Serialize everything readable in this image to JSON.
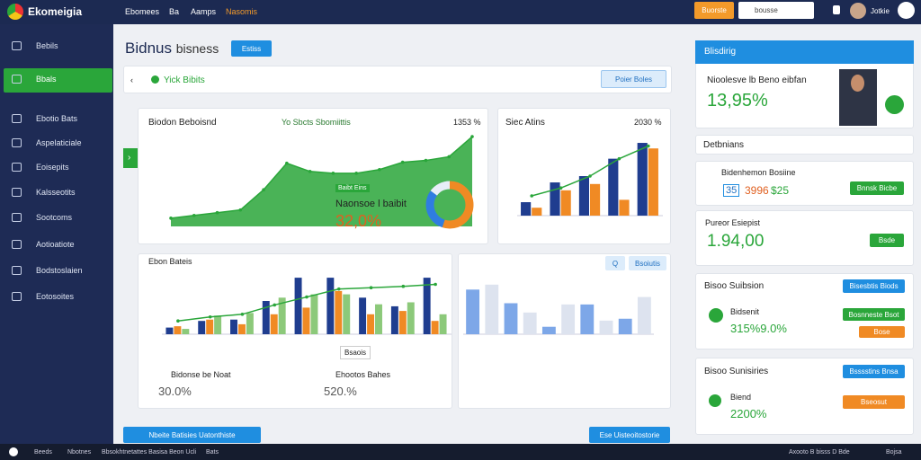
{
  "topbar": {
    "logo": "Ekomeigia",
    "nav": [
      "Ebomees",
      "Ba",
      "Aamps",
      "Nasomis"
    ],
    "button": "Buorste",
    "search": "bousse",
    "user": "Jotkie"
  },
  "sidebar": {
    "items": [
      "Bebils",
      "Bbals",
      "Ebotio Bats",
      "Aspelaticiale",
      "Eoisepits",
      "Kalsseotits",
      "Sootcoms",
      "Aotioatiote",
      "Bodstoslaien",
      "Eotosoites"
    ]
  },
  "header": {
    "title": "Bidnus",
    "subtitle": "bisness",
    "button": "Estiss"
  },
  "toolbar": {
    "label": "Yick Bibits",
    "button": "Poier Boles"
  },
  "chart1": {
    "type": "area",
    "title": "Biodon Beboisnd",
    "legend": "Yo Sbcts Sbomiittis",
    "corner": "1353 %",
    "values": [
      9,
      12,
      15,
      18,
      40,
      69,
      60,
      58,
      58,
      62,
      70,
      72,
      76,
      98
    ],
    "ylim": [
      0,
      100
    ],
    "color": "#2aa63a",
    "callout": {
      "tag": "Baibt Eins",
      "label": "Naonsoe l baibit",
      "value": "32,0%"
    },
    "donut": {
      "values": [
        55,
        30,
        15
      ],
      "colors": [
        "#f08a24",
        "#2f7de1",
        "#e8eef8"
      ]
    }
  },
  "chart2": {
    "type": "bar",
    "title": "Siec Atins",
    "corner": "2030 %",
    "ylim": [
      0,
      100
    ],
    "series": [
      {
        "color": "#1f3d8f",
        "values": [
          17,
          42,
          50,
          72,
          92
        ]
      },
      {
        "color": "#f08a24",
        "values": [
          10,
          32,
          40,
          20,
          85
        ]
      }
    ],
    "line": {
      "color": "#2aa63a",
      "values": [
        25,
        35,
        50,
        72,
        88
      ]
    }
  },
  "chart3": {
    "type": "bar",
    "title": "Ebon Bateis",
    "legend": "Bsaois",
    "ylim": [
      0,
      100
    ],
    "series": [
      {
        "color": "#1f3d8f",
        "values": [
          10,
          20,
          22,
          50,
          85,
          85,
          55,
          42,
          85
        ]
      },
      {
        "color": "#f08a24",
        "values": [
          12,
          22,
          15,
          30,
          40,
          65,
          30,
          35,
          20
        ]
      },
      {
        "color": "#8cc97a",
        "values": [
          8,
          28,
          32,
          55,
          60,
          60,
          45,
          48,
          30
        ]
      }
    ],
    "line": {
      "color": "#2aa63a",
      "values": [
        20,
        26,
        30,
        44,
        56,
        68,
        70,
        72,
        75
      ]
    },
    "stats": [
      {
        "label": "Bidonse be Noat",
        "value": "30.0%"
      },
      {
        "label": "Ehootos Bahes",
        "value": "520.%"
      }
    ]
  },
  "chart4": {
    "type": "bar",
    "button": "Bsoiutis",
    "ylim": [
      0,
      100
    ],
    "values": [
      72,
      80,
      50,
      35,
      12,
      48,
      48,
      22,
      25,
      60
    ],
    "colors": [
      "#7da7e8",
      "#dde3ef"
    ]
  },
  "bottom": {
    "left": "Nbeite Batisies Uatonthiste",
    "right": "Ese Uisteoitostorie"
  },
  "panel": {
    "header": "Blisdirig",
    "headline": "Nioolesve lb Beno eibfan",
    "headline_value": "13,95%",
    "section": "Detbnians",
    "cards": [
      {
        "title": "Bidenhemon Bosiine",
        "values": [
          "35",
          "3996",
          "$25"
        ],
        "button": "Bnnsk Bicbe"
      },
      {
        "title": "Pureor Esiepist",
        "value": "1.94,00",
        "button": "Bsde"
      },
      {
        "title": "Bisoo Suibsion",
        "button": "Bisesbtis Biods",
        "label": "Bidsenit",
        "value": "315%9.0%",
        "buttons": [
          "Bosnneste Bsot",
          "Bose"
        ]
      },
      {
        "title": "Bisoo Sunisiries",
        "button": "Bsssstins Bnsa",
        "label": "Biend",
        "value": "2200%",
        "buttons": [
          "Bseosut"
        ]
      }
    ]
  },
  "footer": {
    "left": [
      "Beeds",
      "Nbotnes",
      "Bbsokhtnetattes Basisa Beon Ucli",
      "Bats"
    ],
    "right": [
      "Axooto B bisss D Bde",
      "Bojsa"
    ]
  }
}
